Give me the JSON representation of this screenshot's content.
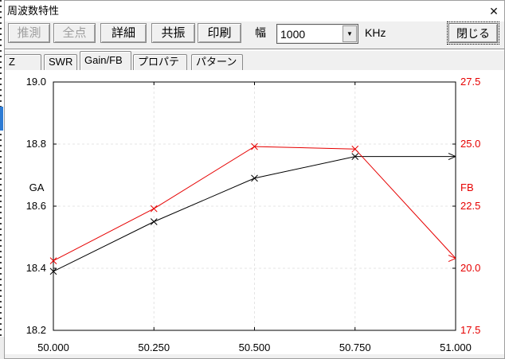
{
  "window": {
    "title": "周波数特性",
    "icons": {
      "close": "✕",
      "dropdown": "▼"
    }
  },
  "toolbar": {
    "buttons": [
      {
        "label": "推測",
        "enabled": false
      },
      {
        "label": "全点",
        "enabled": false
      },
      {
        "label": "詳細",
        "enabled": true
      },
      {
        "label": "共振",
        "enabled": true
      },
      {
        "label": "印刷",
        "enabled": true
      }
    ],
    "width_label": "幅",
    "width_value": "1000",
    "unit_label": "KHz",
    "close_button_label": "閉じる"
  },
  "tabs": [
    {
      "label": "Z",
      "selected": false
    },
    {
      "label": "SWR",
      "selected": false
    },
    {
      "label": "Gain/FB",
      "selected": true
    },
    {
      "label": "プロパティ",
      "selected": false
    },
    {
      "label": "パターン",
      "selected": false
    }
  ],
  "chart_data": {
    "type": "line",
    "x": [
      50.0,
      50.25,
      50.5,
      50.75,
      51.0
    ],
    "x_tick_labels": [
      "50.000",
      "50.250",
      "50.500",
      "50.750",
      "51.000"
    ],
    "x_axis": {
      "min": 50.0,
      "max": 51.0
    },
    "left_axis": {
      "label": "GA",
      "min": 18.2,
      "max": 19.0,
      "color": "#000000",
      "ticks": [
        19.0,
        18.8,
        18.6,
        18.4,
        18.2
      ],
      "tick_labels": [
        "19.0",
        "18.8",
        "18.6",
        "18.4",
        "18.2"
      ]
    },
    "right_axis": {
      "label": "FB",
      "min": 17.5,
      "max": 27.5,
      "color": "#e60000",
      "ticks": [
        27.5,
        25.0,
        22.5,
        20.0,
        17.5
      ],
      "tick_labels": [
        "27.5",
        "25.0",
        "22.5",
        "20.0",
        "17.5"
      ]
    },
    "series": [
      {
        "name": "GA",
        "axis": "left",
        "color": "#000000",
        "values": [
          18.39,
          18.55,
          18.69,
          18.76,
          18.76
        ]
      },
      {
        "name": "FB",
        "axis": "right",
        "color": "#e60000",
        "values": [
          20.3,
          22.4,
          24.9,
          24.8,
          20.4
        ]
      }
    ],
    "grid": "dashed",
    "grid_color": "#e4e4e4",
    "marker": "x",
    "end_marker": "arrow"
  }
}
